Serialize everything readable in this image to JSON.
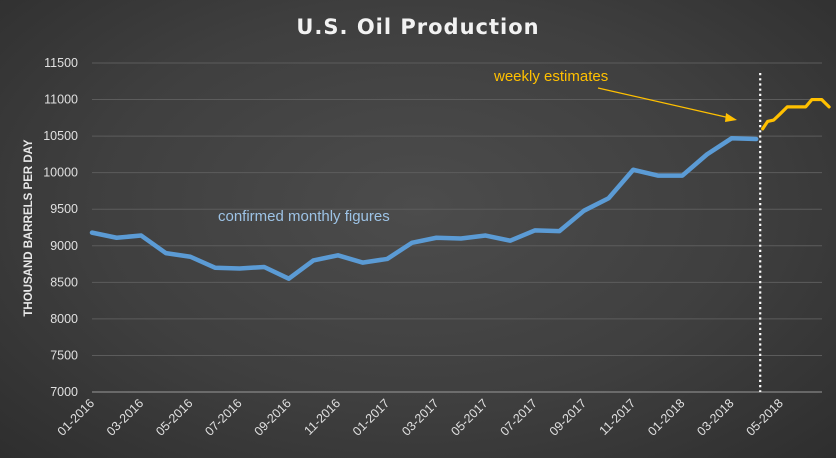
{
  "chart_data": {
    "type": "line",
    "title": "U.S. Oil Production",
    "xlabel": "",
    "ylabel": "THOUSAND BARRELS PER DAY",
    "ylim": [
      7000,
      11500
    ],
    "yticks": [
      7000,
      7500,
      8000,
      8500,
      9000,
      9500,
      10000,
      10500,
      11000,
      11500
    ],
    "xtick_labels": [
      "01-2016",
      "03-2016",
      "05-2016",
      "07-2016",
      "09-2016",
      "11-2016",
      "01-2017",
      "03-2017",
      "05-2017",
      "07-2017",
      "09-2017",
      "11-2017",
      "01-2018",
      "03-2018",
      "05-2018"
    ],
    "grid": true,
    "series": [
      {
        "color": "#5b9bd5",
        "x": [
          "01-2016",
          "02-2016",
          "03-2016",
          "04-2016",
          "05-2016",
          "06-2016",
          "07-2016",
          "08-2016",
          "09-2016",
          "10-2016",
          "11-2016",
          "12-2016",
          "01-2017",
          "02-2017",
          "03-2017",
          "04-2017",
          "05-2017",
          "06-2017",
          "07-2017",
          "08-2017",
          "09-2017",
          "10-2017",
          "11-2017",
          "12-2017",
          "01-2018",
          "02-2018",
          "03-2018",
          "04-2018"
        ],
        "values": [
          9180,
          9110,
          9140,
          8900,
          8850,
          8700,
          8690,
          8710,
          8550,
          8800,
          8870,
          8770,
          8820,
          9040,
          9110,
          9100,
          9140,
          9070,
          9210,
          9200,
          9480,
          9650,
          10040,
          9960,
          9960,
          10250,
          10470,
          10460
        ]
      },
      {
        "color": "#ffc000",
        "x": [
          "04-2018",
          "04-2018",
          "04-2018",
          "05-2018",
          "05-2018",
          "05-2018",
          "05-2018",
          "06-2018",
          "06-2018",
          "06-2018",
          "06-2018",
          "07-2018",
          "07-2018"
        ],
        "x_offset_months": [
          0.1,
          0.3,
          0.55,
          0.8,
          1.1,
          1.35,
          1.6,
          1.85,
          2.1,
          2.35,
          2.5,
          2.65,
          2.8
        ],
        "values": [
          10600,
          10700,
          10720,
          10800,
          10900,
          10900,
          10900,
          10900,
          11000,
          11000,
          11000,
          10950,
          10900
        ]
      }
    ],
    "reference_line": {
      "x": "04-2018",
      "style": "dotted",
      "color": "#ffffff"
    },
    "annotations": [
      {
        "text": "weekly estimates",
        "color": "#ffc000"
      },
      {
        "text": "confirmed monthly figures",
        "color": "#9dc3e6"
      }
    ]
  }
}
